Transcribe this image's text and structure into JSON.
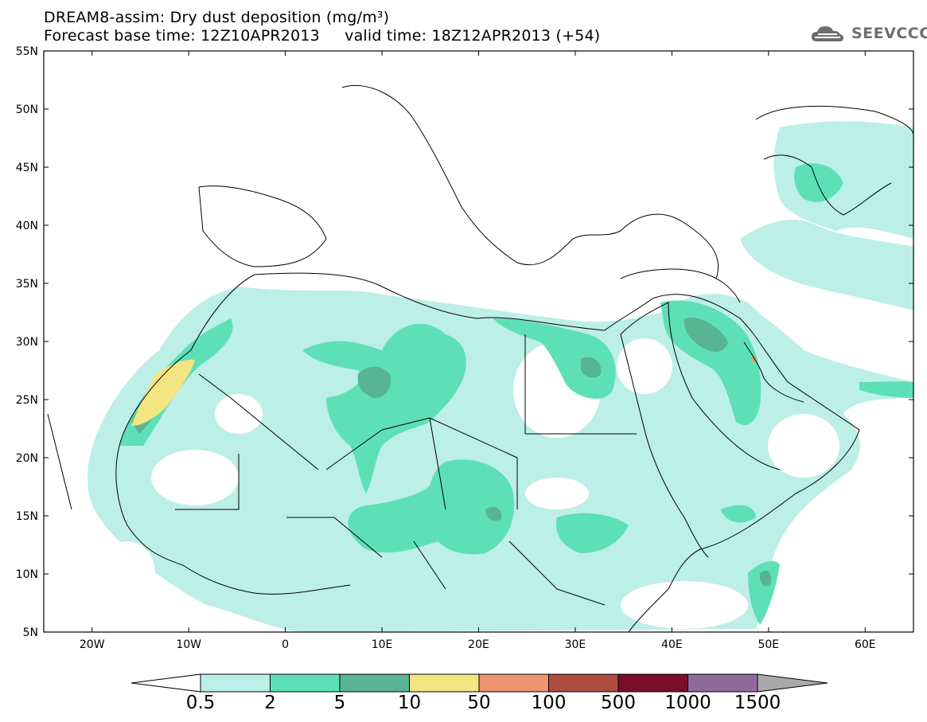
{
  "title": {
    "line1": "DREAM8-assim: Dry dust deposition (mg/m³)",
    "line2_base": "Forecast base time: 12Z10APR2013",
    "line2_valid": "valid time: 18Z12APR2013 (+54)"
  },
  "logo": {
    "text": "SEEVCCC",
    "icon": "cloud-icon"
  },
  "map": {
    "lat_ticks": [
      "55N",
      "50N",
      "45N",
      "40N",
      "35N",
      "30N",
      "25N",
      "20N",
      "15N",
      "10N",
      "5N"
    ],
    "lon_ticks": [
      "20W",
      "10W",
      "0",
      "10E",
      "20E",
      "30E",
      "40E",
      "50E",
      "60E"
    ],
    "lat_range": [
      5,
      55
    ],
    "lon_range": [
      -25,
      65
    ]
  },
  "colorbar": {
    "labels": [
      "0.5",
      "2",
      "5",
      "10",
      "50",
      "100",
      "500",
      "1000",
      "1500"
    ],
    "colors": [
      "#bcefe6",
      "#5ee0b7",
      "#58b493",
      "#f4e482",
      "#ee9470",
      "#ae4c40",
      "#7a0d2a",
      "#8f6b9c",
      "#aaaaaa"
    ]
  }
}
